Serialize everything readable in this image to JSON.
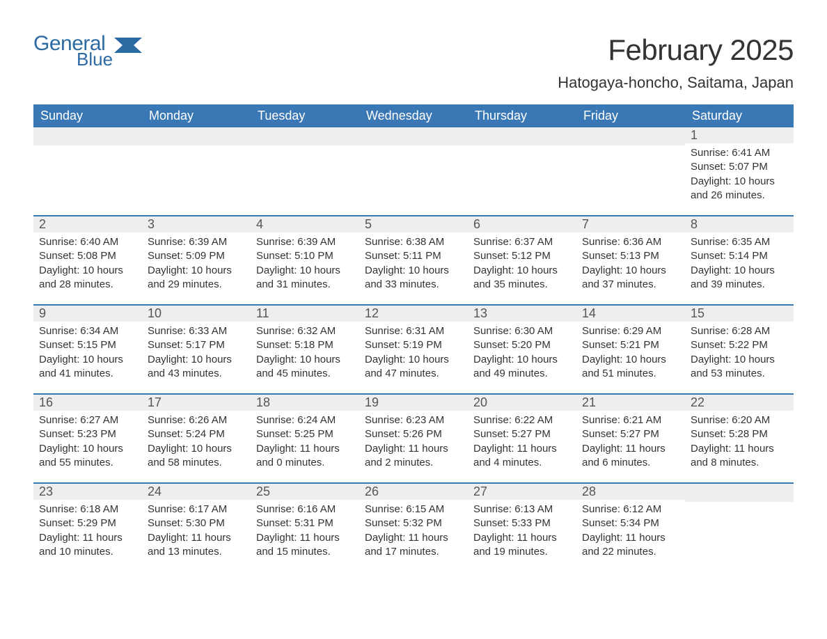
{
  "logo": {
    "word1": "General",
    "word2": "Blue",
    "brand_color": "#2c6aa3",
    "flag_color": "#2c6aa3"
  },
  "title": "February 2025",
  "location": "Hatogaya-honcho, Saitama, Japan",
  "colors": {
    "header_bg": "#3a78b5",
    "header_text": "#ffffff",
    "daynum_bg": "#eeeeee",
    "daynum_text": "#555555",
    "body_text": "#333333",
    "week_border": "#3a78b5",
    "page_bg": "#ffffff"
  },
  "typography": {
    "title_fontsize": 42,
    "location_fontsize": 22,
    "weekday_fontsize": 18,
    "daynum_fontsize": 18,
    "body_fontsize": 15
  },
  "weekdays": [
    "Sunday",
    "Monday",
    "Tuesday",
    "Wednesday",
    "Thursday",
    "Friday",
    "Saturday"
  ],
  "weeks": [
    [
      {
        "day": null
      },
      {
        "day": null
      },
      {
        "day": null
      },
      {
        "day": null
      },
      {
        "day": null
      },
      {
        "day": null
      },
      {
        "day": "1",
        "sunrise": "Sunrise: 6:41 AM",
        "sunset": "Sunset: 5:07 PM",
        "daylight": "Daylight: 10 hours and 26 minutes."
      }
    ],
    [
      {
        "day": "2",
        "sunrise": "Sunrise: 6:40 AM",
        "sunset": "Sunset: 5:08 PM",
        "daylight": "Daylight: 10 hours and 28 minutes."
      },
      {
        "day": "3",
        "sunrise": "Sunrise: 6:39 AM",
        "sunset": "Sunset: 5:09 PM",
        "daylight": "Daylight: 10 hours and 29 minutes."
      },
      {
        "day": "4",
        "sunrise": "Sunrise: 6:39 AM",
        "sunset": "Sunset: 5:10 PM",
        "daylight": "Daylight: 10 hours and 31 minutes."
      },
      {
        "day": "5",
        "sunrise": "Sunrise: 6:38 AM",
        "sunset": "Sunset: 5:11 PM",
        "daylight": "Daylight: 10 hours and 33 minutes."
      },
      {
        "day": "6",
        "sunrise": "Sunrise: 6:37 AM",
        "sunset": "Sunset: 5:12 PM",
        "daylight": "Daylight: 10 hours and 35 minutes."
      },
      {
        "day": "7",
        "sunrise": "Sunrise: 6:36 AM",
        "sunset": "Sunset: 5:13 PM",
        "daylight": "Daylight: 10 hours and 37 minutes."
      },
      {
        "day": "8",
        "sunrise": "Sunrise: 6:35 AM",
        "sunset": "Sunset: 5:14 PM",
        "daylight": "Daylight: 10 hours and 39 minutes."
      }
    ],
    [
      {
        "day": "9",
        "sunrise": "Sunrise: 6:34 AM",
        "sunset": "Sunset: 5:15 PM",
        "daylight": "Daylight: 10 hours and 41 minutes."
      },
      {
        "day": "10",
        "sunrise": "Sunrise: 6:33 AM",
        "sunset": "Sunset: 5:17 PM",
        "daylight": "Daylight: 10 hours and 43 minutes."
      },
      {
        "day": "11",
        "sunrise": "Sunrise: 6:32 AM",
        "sunset": "Sunset: 5:18 PM",
        "daylight": "Daylight: 10 hours and 45 minutes."
      },
      {
        "day": "12",
        "sunrise": "Sunrise: 6:31 AM",
        "sunset": "Sunset: 5:19 PM",
        "daylight": "Daylight: 10 hours and 47 minutes."
      },
      {
        "day": "13",
        "sunrise": "Sunrise: 6:30 AM",
        "sunset": "Sunset: 5:20 PM",
        "daylight": "Daylight: 10 hours and 49 minutes."
      },
      {
        "day": "14",
        "sunrise": "Sunrise: 6:29 AM",
        "sunset": "Sunset: 5:21 PM",
        "daylight": "Daylight: 10 hours and 51 minutes."
      },
      {
        "day": "15",
        "sunrise": "Sunrise: 6:28 AM",
        "sunset": "Sunset: 5:22 PM",
        "daylight": "Daylight: 10 hours and 53 minutes."
      }
    ],
    [
      {
        "day": "16",
        "sunrise": "Sunrise: 6:27 AM",
        "sunset": "Sunset: 5:23 PM",
        "daylight": "Daylight: 10 hours and 55 minutes."
      },
      {
        "day": "17",
        "sunrise": "Sunrise: 6:26 AM",
        "sunset": "Sunset: 5:24 PM",
        "daylight": "Daylight: 10 hours and 58 minutes."
      },
      {
        "day": "18",
        "sunrise": "Sunrise: 6:24 AM",
        "sunset": "Sunset: 5:25 PM",
        "daylight": "Daylight: 11 hours and 0 minutes."
      },
      {
        "day": "19",
        "sunrise": "Sunrise: 6:23 AM",
        "sunset": "Sunset: 5:26 PM",
        "daylight": "Daylight: 11 hours and 2 minutes."
      },
      {
        "day": "20",
        "sunrise": "Sunrise: 6:22 AM",
        "sunset": "Sunset: 5:27 PM",
        "daylight": "Daylight: 11 hours and 4 minutes."
      },
      {
        "day": "21",
        "sunrise": "Sunrise: 6:21 AM",
        "sunset": "Sunset: 5:27 PM",
        "daylight": "Daylight: 11 hours and 6 minutes."
      },
      {
        "day": "22",
        "sunrise": "Sunrise: 6:20 AM",
        "sunset": "Sunset: 5:28 PM",
        "daylight": "Daylight: 11 hours and 8 minutes."
      }
    ],
    [
      {
        "day": "23",
        "sunrise": "Sunrise: 6:18 AM",
        "sunset": "Sunset: 5:29 PM",
        "daylight": "Daylight: 11 hours and 10 minutes."
      },
      {
        "day": "24",
        "sunrise": "Sunrise: 6:17 AM",
        "sunset": "Sunset: 5:30 PM",
        "daylight": "Daylight: 11 hours and 13 minutes."
      },
      {
        "day": "25",
        "sunrise": "Sunrise: 6:16 AM",
        "sunset": "Sunset: 5:31 PM",
        "daylight": "Daylight: 11 hours and 15 minutes."
      },
      {
        "day": "26",
        "sunrise": "Sunrise: 6:15 AM",
        "sunset": "Sunset: 5:32 PM",
        "daylight": "Daylight: 11 hours and 17 minutes."
      },
      {
        "day": "27",
        "sunrise": "Sunrise: 6:13 AM",
        "sunset": "Sunset: 5:33 PM",
        "daylight": "Daylight: 11 hours and 19 minutes."
      },
      {
        "day": "28",
        "sunrise": "Sunrise: 6:12 AM",
        "sunset": "Sunset: 5:34 PM",
        "daylight": "Daylight: 11 hours and 22 minutes."
      },
      {
        "day": null
      }
    ]
  ]
}
